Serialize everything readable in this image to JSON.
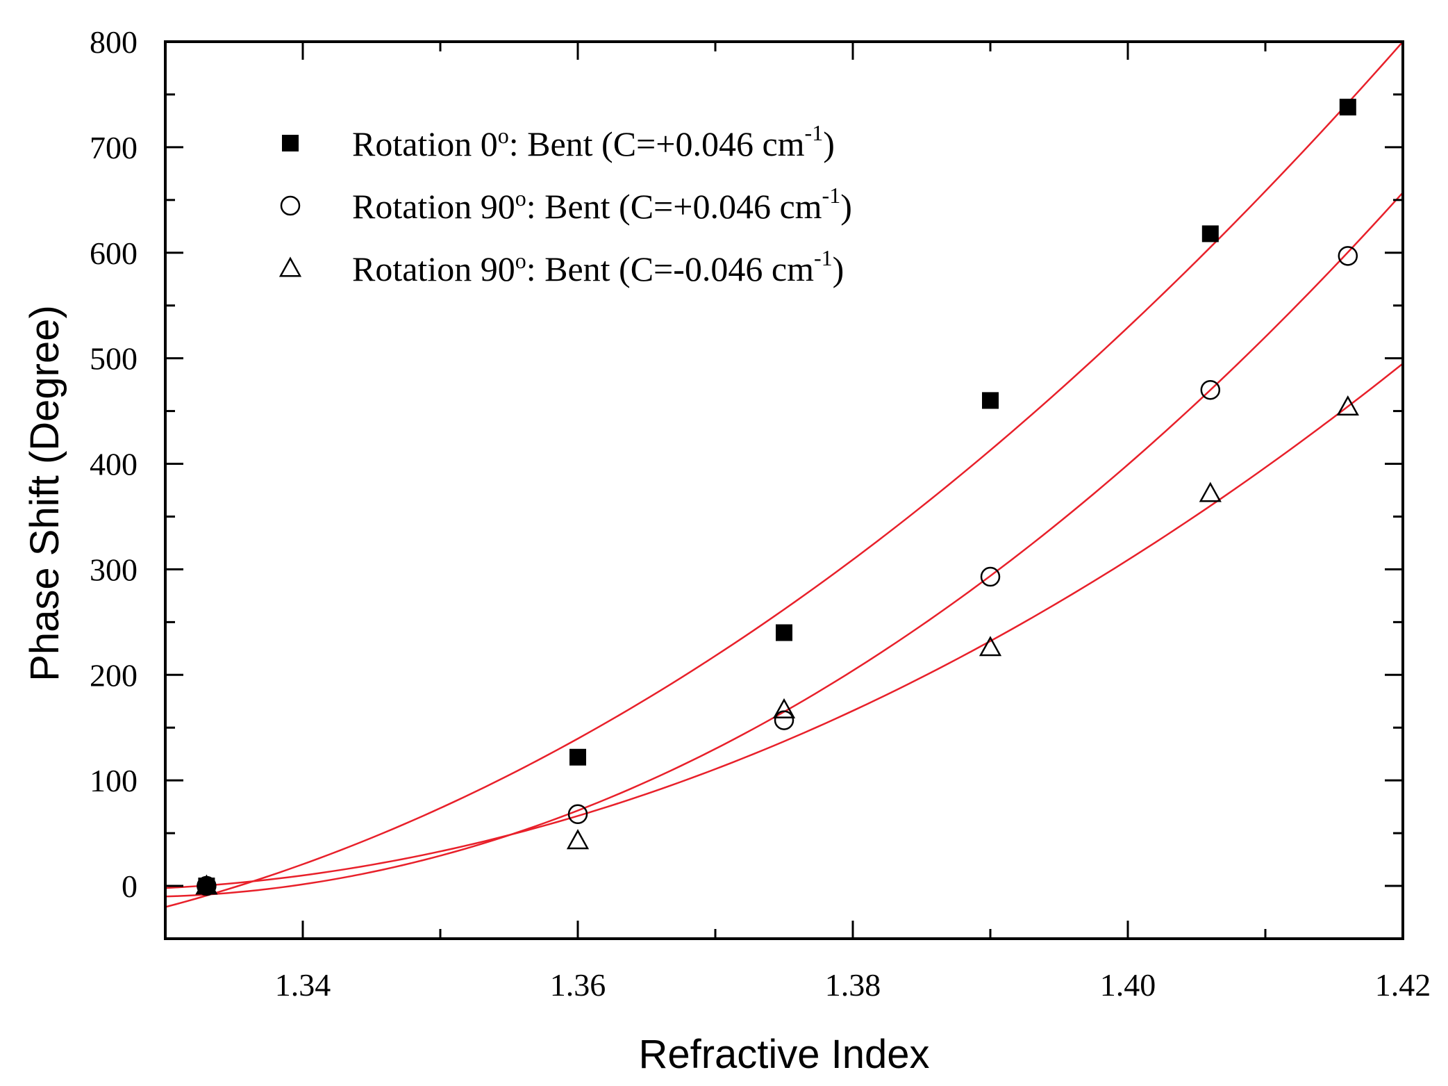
{
  "chart_data": {
    "type": "scatter",
    "xlabel": "Refractive Index",
    "ylabel": "Phase Shift (Degree)",
    "xlim": [
      1.33,
      1.42
    ],
    "ylim": [
      -50,
      800
    ],
    "xticks": [
      1.34,
      1.36,
      1.38,
      1.4,
      1.42
    ],
    "xtick_labels": [
      "1.34",
      "1.36",
      "1.38",
      "1.40",
      "1.42"
    ],
    "yticks": [
      0,
      100,
      200,
      300,
      400,
      500,
      600,
      700,
      800
    ],
    "ytick_labels": [
      "0",
      "100",
      "200",
      "300",
      "400",
      "500",
      "600",
      "700",
      "800"
    ],
    "x_minor_step": 0.01,
    "y_minor_step": 50,
    "legend_position": "top-left",
    "fit_color": "#e8202a",
    "series": [
      {
        "name": "Rotation 0º:   Bent (C=+0.046 cm-1)",
        "label_text": "Rotation 0",
        "label_deg": "o",
        "label_rest": ":   Bent (C=+0.046 cm",
        "label_sup": "-1",
        "label_close": ")",
        "marker": "filled-square",
        "x": [
          1.333,
          1.36,
          1.375,
          1.39,
          1.406,
          1.416
        ],
        "y": [
          0,
          122,
          240,
          460,
          618,
          738
        ],
        "fit": {
          "kind": "quadratic",
          "points": [
            [
              1.33,
              -20
            ],
            [
              1.375,
              262
            ],
            [
              1.42,
              800
            ]
          ]
        }
      },
      {
        "name": "Rotation 90º: Bent (C=+0.046 cm-1)",
        "label_text": "Rotation 90",
        "label_deg": "o",
        "label_rest": ": Bent (C=+0.046 cm",
        "label_sup": "-1",
        "label_close": ")",
        "marker": "open-circle",
        "x": [
          1.333,
          1.36,
          1.375,
          1.39,
          1.406,
          1.416
        ],
        "y": [
          0,
          68,
          157,
          293,
          470,
          597
        ],
        "fit": {
          "kind": "quadratic",
          "points": [
            [
              1.33,
              -10
            ],
            [
              1.375,
              165
            ],
            [
              1.42,
              657
            ]
          ]
        }
      },
      {
        "name": "Rotation 90º: Bent (C=-0.046 cm-1)",
        "label_text": "Rotation 90",
        "label_deg": "o",
        "label_rest": ": Bent (C=-0.046 cm",
        "label_sup": "-1",
        "label_close": ")",
        "marker": "open-triangle",
        "x": [
          1.333,
          1.36,
          1.375,
          1.39,
          1.406,
          1.416
        ],
        "y": [
          0,
          43,
          167,
          226,
          372,
          454
        ],
        "fit": {
          "kind": "quadratic",
          "points": [
            [
              1.33,
              -2
            ],
            [
              1.375,
              137
            ],
            [
              1.42,
              495
            ]
          ]
        }
      }
    ]
  }
}
